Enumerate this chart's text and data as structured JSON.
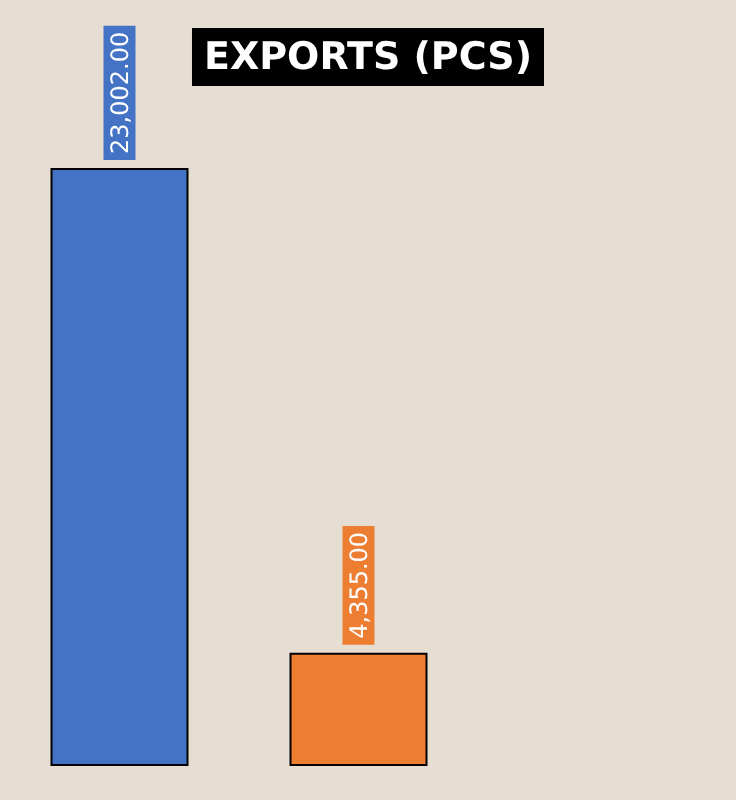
{
  "chart_data": {
    "type": "bar",
    "title": "EXPORTS (PCS)",
    "categories": [
      null,
      null
    ],
    "values": [
      23002,
      4355
    ],
    "colors": [
      "#4472c4",
      "#ed7d31"
    ],
    "value_labels": [
      "23,002.00",
      "4,355.00"
    ]
  }
}
